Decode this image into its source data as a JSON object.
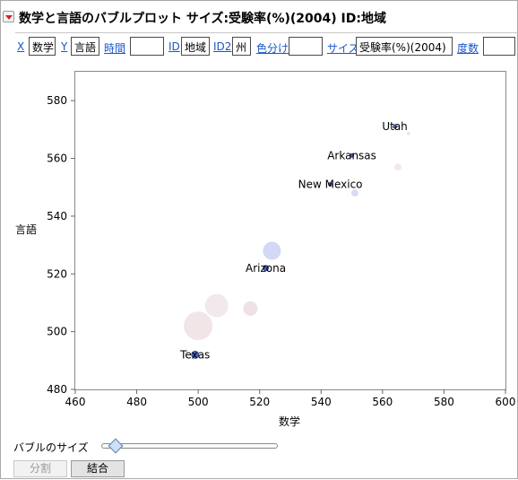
{
  "window": {
    "title": "数学と言語のバブルプロット サイズ:受験率(%)(2004)  ID:地域"
  },
  "roles": [
    {
      "link": "X",
      "value": "数学"
    },
    {
      "link": "Y",
      "value": "言語"
    },
    {
      "link": "時間",
      "value": ""
    },
    {
      "link": "ID",
      "value": "地域"
    },
    {
      "link": "ID2",
      "value": "州"
    },
    {
      "link": "色分け",
      "value": ""
    },
    {
      "link": "サイズ",
      "value": "受験率(%)(2004)"
    },
    {
      "link": "度数",
      "value": ""
    }
  ],
  "chart_data": {
    "type": "scatter",
    "title": "",
    "xlabel": "数学",
    "ylabel": "言語",
    "xlim": [
      460,
      600
    ],
    "ylim": [
      480,
      590
    ],
    "x_ticks": [
      460,
      480,
      500,
      520,
      540,
      560,
      580,
      600
    ],
    "y_ticks": [
      480,
      500,
      520,
      540,
      560,
      580
    ],
    "grid": false,
    "colors": {
      "blue": "#8e9ee6",
      "pink": "#d8b4be"
    },
    "bubbles": [
      {
        "x": 568.5,
        "y": 568.6,
        "size": 2,
        "color": "pink",
        "opacity": 0.35
      },
      {
        "x": 565,
        "y": 557,
        "size": 4,
        "color": "pink",
        "opacity": 0.3
      },
      {
        "x": 551,
        "y": 548,
        "size": 4,
        "color": "blue",
        "opacity": 0.35
      },
      {
        "x": 524,
        "y": 528,
        "size": 10,
        "color": "blue",
        "opacity": 0.4
      },
      {
        "x": 517,
        "y": 508,
        "size": 8,
        "color": "pink",
        "opacity": 0.4
      },
      {
        "x": 506,
        "y": 509,
        "size": 13,
        "color": "pink",
        "opacity": 0.3
      },
      {
        "x": 500,
        "y": 502,
        "size": 16,
        "color": "pink",
        "opacity": 0.35
      }
    ],
    "labeled_points": [
      {
        "x": 564,
        "y": 571,
        "label": "Utah",
        "size": 2
      },
      {
        "x": 550,
        "y": 561,
        "label": "Arkansas",
        "size": 2
      },
      {
        "x": 543,
        "y": 551,
        "label": "New Mexico",
        "size": 2
      },
      {
        "x": 522,
        "y": 522,
        "label": "Arizona",
        "size": 3
      },
      {
        "x": 499,
        "y": 492,
        "label": "Texas",
        "size": 4
      }
    ]
  },
  "controls": {
    "bubble_size_label": "バブルのサイズ",
    "bubble_size_fraction": 0.08,
    "split_button": "分割",
    "combine_button": "結合"
  }
}
